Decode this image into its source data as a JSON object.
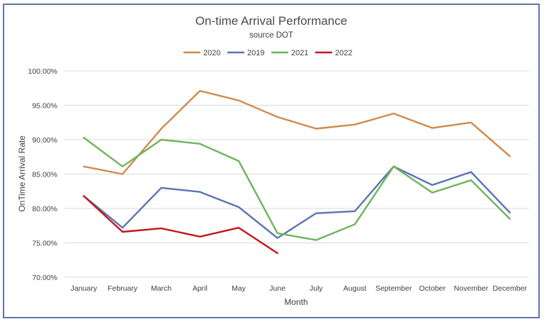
{
  "chart_data": {
    "type": "line",
    "title": "On-time Arrival Performance",
    "subtitle": "source DOT",
    "xlabel": "Month",
    "ylabel": "OnTime Arrival Rate",
    "ylim": [
      70,
      100
    ],
    "yticks": [
      {
        "value": 70,
        "label": "70.00%"
      },
      {
        "value": 75,
        "label": "75.00%"
      },
      {
        "value": 80,
        "label": "80.00%"
      },
      {
        "value": 85,
        "label": "85.00%"
      },
      {
        "value": 90,
        "label": "90.00%"
      },
      {
        "value": 95,
        "label": "95.00%"
      },
      {
        "value": 100,
        "label": "100.00%"
      }
    ],
    "grid": true,
    "legend_position": "top",
    "categories": [
      "January",
      "February",
      "March",
      "April",
      "May",
      "June",
      "July",
      "August",
      "September",
      "October",
      "November",
      "December"
    ],
    "series": [
      {
        "name": "2020",
        "color": "#d08a4c",
        "values": [
          86.1,
          85.0,
          91.6,
          97.1,
          95.7,
          93.3,
          91.6,
          92.2,
          93.8,
          91.7,
          92.5,
          87.6
        ]
      },
      {
        "name": "2019",
        "color": "#5a73b3",
        "values": [
          81.8,
          77.2,
          83.0,
          82.4,
          80.2,
          75.7,
          79.3,
          79.6,
          86.1,
          83.4,
          85.3,
          79.4
        ]
      },
      {
        "name": "2021",
        "color": "#6cb55a",
        "values": [
          90.3,
          86.1,
          90.0,
          89.4,
          86.9,
          76.4,
          75.4,
          77.7,
          86.1,
          82.3,
          84.1,
          78.5
        ]
      },
      {
        "name": "2022",
        "color": "#c3161c",
        "values": [
          81.8,
          76.6,
          77.1,
          75.9,
          77.2,
          73.5,
          null,
          null,
          null,
          null,
          null,
          null
        ]
      }
    ]
  }
}
